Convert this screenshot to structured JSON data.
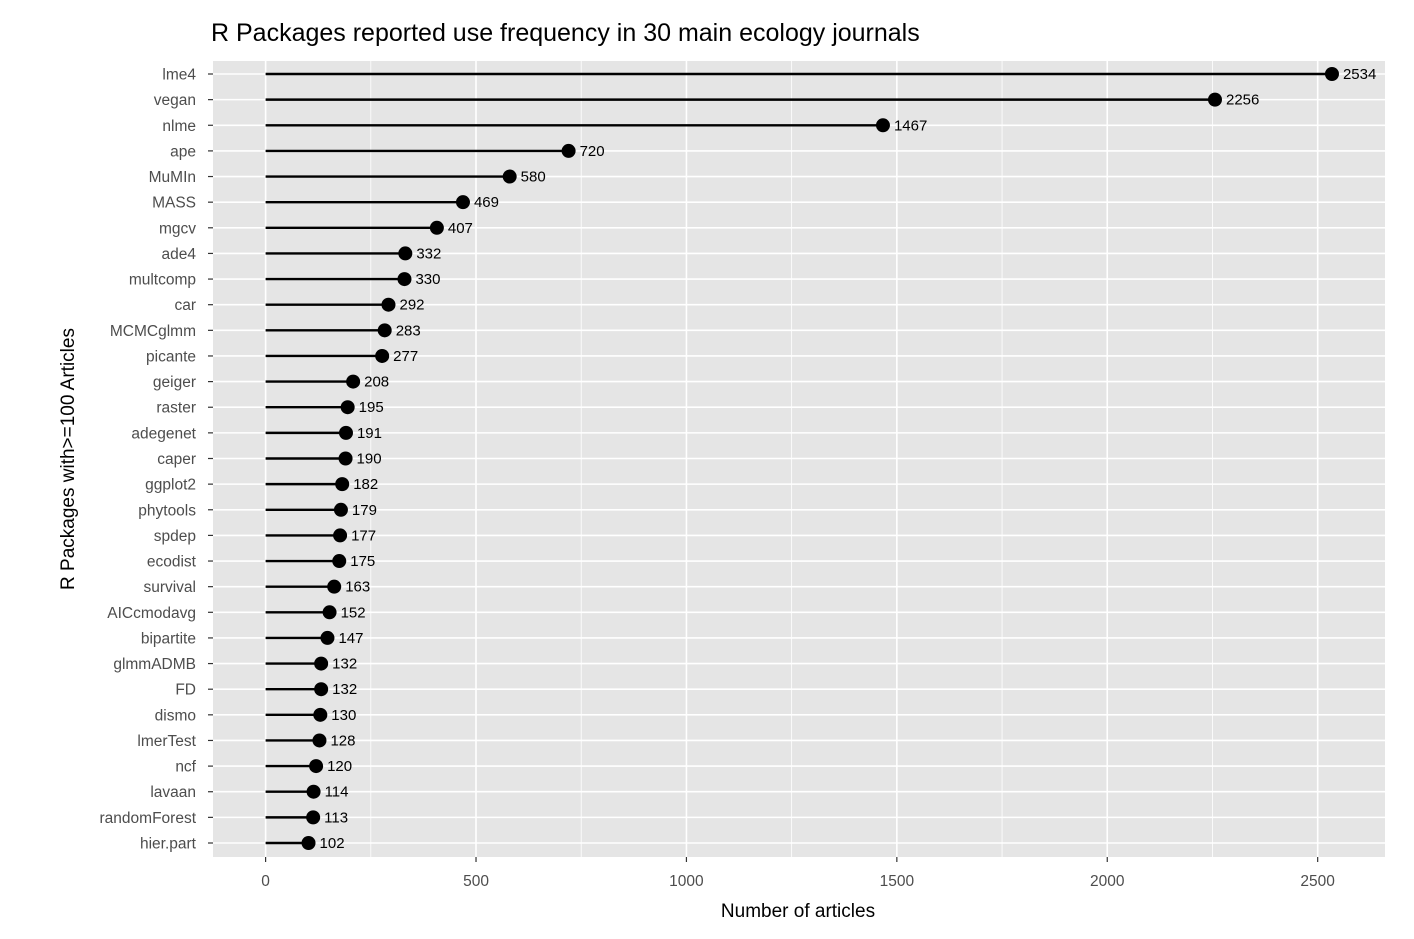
{
  "chart_data": {
    "type": "lollipop",
    "title": "R Packages reported use frequency in 30 main ecology journals",
    "xlabel": "Number of articles",
    "ylabel": "R Packages with>=100 Articles",
    "xlim": [
      -125,
      2660
    ],
    "xticks": [
      0,
      500,
      1000,
      1500,
      2000,
      2500
    ],
    "xtick_labels": [
      "0",
      "500",
      "1000",
      "1500",
      "2000",
      "2500"
    ],
    "grid": true,
    "colors": {
      "panel_background": "#e5e5e5",
      "grid_line": "#ffffff",
      "mark": "#000000",
      "tick_label": "#4d4d4d"
    },
    "categories": [
      "lme4",
      "vegan",
      "nlme",
      "ape",
      "MuMIn",
      "MASS",
      "mgcv",
      "ade4",
      "multcomp",
      "car",
      "MCMCglmm",
      "picante",
      "geiger",
      "raster",
      "adegenet",
      "caper",
      "ggplot2",
      "phytools",
      "spdep",
      "ecodist",
      "survival",
      "AICcmodavg",
      "bipartite",
      "glmmADMB",
      "FD",
      "dismo",
      "lmerTest",
      "ncf",
      "lavaan",
      "randomForest",
      "hier.part"
    ],
    "values": [
      2534,
      2256,
      1467,
      720,
      580,
      469,
      407,
      332,
      330,
      292,
      283,
      277,
      208,
      195,
      191,
      190,
      182,
      179,
      177,
      175,
      163,
      152,
      147,
      132,
      132,
      130,
      128,
      120,
      114,
      113,
      102
    ],
    "labels": [
      "2534",
      "2256",
      "1467",
      "720",
      "580",
      "469",
      "407",
      "332",
      "330",
      "292",
      "283",
      "277",
      "208",
      "195",
      "191",
      "190",
      "182",
      "179",
      "177",
      "175",
      "163",
      "152",
      "147",
      "132",
      "132",
      "130",
      "128",
      "120",
      "114",
      "113",
      "102"
    ]
  }
}
